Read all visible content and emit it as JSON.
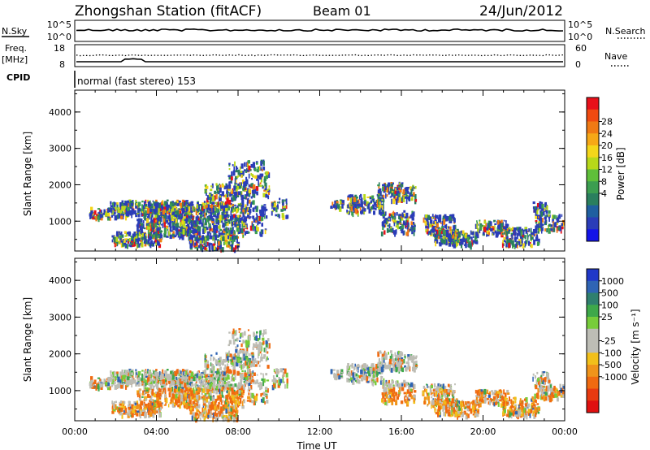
{
  "header": {
    "station": "Zhongshan Station (fitACF)",
    "beam": "Beam 01",
    "date": "24/Jun/2012"
  },
  "strips": {
    "nsky_label": "N.Sky",
    "nsky_ticks": [
      "10^5",
      "10^0"
    ],
    "nsearch_label": "N.Search",
    "nsearch_ticks": [
      "10^5",
      "10^0"
    ],
    "freq_label": "Freq.",
    "freq_unit": "[MHz]",
    "freq_ticks": [
      "18",
      "8"
    ],
    "nave_label": "Nave",
    "nave_ticks": [
      "60",
      "0"
    ],
    "cpid_label": "CPID",
    "cpid_text": "normal (fast stereo) 153"
  },
  "chart_data": [
    {
      "type": "heatmap",
      "name": "power",
      "ylabel": "Slant Range [km]",
      "yticks": [
        "4000",
        "3000",
        "2000",
        "1000"
      ],
      "xticks": [
        "00:00",
        "04:00",
        "08:00",
        "12:00",
        "16:00",
        "20:00",
        "00:00"
      ],
      "xlim_hours": [
        0,
        24
      ],
      "ylim_km": [
        180,
        4600
      ],
      "colorbar": {
        "label": "Power [dB]",
        "ticks": [
          "28",
          "24",
          "20",
          "16",
          "12",
          "8",
          "4"
        ],
        "colors": [
          "#e8101a",
          "#f04a10",
          "#f07a14",
          "#f6a817",
          "#f4d61a",
          "#b7d81a",
          "#5fbf3a",
          "#3c9e50",
          "#2a7f5e",
          "#1f5fa0",
          "#2a3cb8",
          "#1414e8"
        ]
      }
    },
    {
      "type": "heatmap",
      "name": "velocity",
      "ylabel": "Slant Range [km]",
      "yticks": [
        "4000",
        "3000",
        "2000",
        "1000"
      ],
      "xticks": [
        "00:00",
        "04:00",
        "08:00",
        "12:00",
        "16:00",
        "20:00",
        "00:00"
      ],
      "xlabel": "Time UT",
      "xlim_hours": [
        0,
        24
      ],
      "ylim_km": [
        180,
        4600
      ],
      "colorbar": {
        "label": "Velocity [m s⁻¹]",
        "ticks": [
          "1000",
          "500",
          "100",
          "25",
          "-25",
          "-100",
          "-500",
          "-1000"
        ],
        "colors": [
          "#2038c8",
          "#2f64b4",
          "#2f7f6e",
          "#3ea84a",
          "#77cc3a",
          "#bdbdb5",
          "#bdbdb5",
          "#f2c01a",
          "#f0941a",
          "#f06a10",
          "#e83a10",
          "#e01010"
        ]
      }
    }
  ]
}
